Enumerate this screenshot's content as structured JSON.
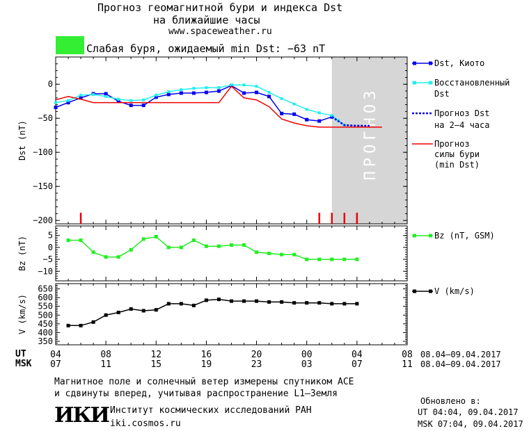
{
  "header": {
    "title_line1": "Прогноз геомагнитной бури и индекса Dst",
    "title_line2": "на ближайшие часы",
    "site": "www.spaceweather.ru",
    "status_color": "#33ee33",
    "status_text": "Слабая буря, ожидаемый min Dst: −63 nT"
  },
  "footer": {
    "line1": "Магнитное поле и солнечный ветер измерены спутником ACE",
    "line2": "и сдвинуты вперед, учитывая распространение L1–Земля",
    "logo": "ИКИ",
    "institute": "Институт космических исследований РАН",
    "institute_site": "iki.cosmos.ru",
    "updated_label": "Обновлено в:",
    "updated_ut": "UT  04:04, 09.04.2017",
    "updated_msk": "MSK 07:04, 09.04.2017"
  },
  "chart_data": [
    {
      "type": "line",
      "ylabel": "Dst (nT)",
      "ylim": [
        -205,
        40
      ],
      "yticks": [
        0,
        -50,
        -100,
        -150,
        -200
      ],
      "xlim": [
        0,
        28
      ],
      "forecast_region": {
        "x0": 22,
        "x1": 28,
        "label": "ПРОГНОЗ",
        "color": "#d6d6d6"
      },
      "series": [
        {
          "name": "Dst, Киото",
          "color": "#0000ee",
          "x": [
            0,
            1,
            2,
            3,
            4,
            5,
            6,
            7,
            8,
            9,
            10,
            11,
            12,
            13,
            14,
            15,
            16,
            17,
            18,
            19,
            20,
            21,
            22
          ],
          "values": [
            -34,
            -27,
            -20,
            -14,
            -14,
            -25,
            -31,
            -31,
            -19,
            -15,
            -13,
            -13,
            -12,
            -10,
            -2,
            -13,
            -12,
            -18,
            -43,
            -44,
            -52,
            -54,
            -48
          ]
        },
        {
          "name": "Восстановленный Dst",
          "color": "#22eeee",
          "x": [
            0,
            1,
            2,
            3,
            4,
            5,
            6,
            7,
            8,
            9,
            10,
            11,
            12,
            13,
            14,
            15,
            16,
            17,
            18,
            19,
            20,
            21,
            22,
            22.5,
            23
          ],
          "values": [
            -27,
            -24,
            -16,
            -15,
            -18,
            -22,
            -24,
            -23,
            -16,
            -11,
            -8,
            -6,
            -5,
            -5,
            -1,
            -1,
            -3,
            -12,
            -21,
            -29,
            -37,
            -42,
            -46,
            -53,
            -60
          ]
        },
        {
          "name": "Прогноз Dst на 2–4 часа",
          "color": "#0000ee",
          "dashed": true,
          "x": [
            22,
            23,
            24,
            25
          ],
          "values": [
            -48,
            -60,
            -61,
            -61
          ]
        },
        {
          "name": "Прогноз силы бури (min Dst)",
          "color": "#ee0000",
          "x": [
            0,
            1,
            2,
            3,
            4,
            5,
            6,
            7,
            8,
            9,
            10,
            11,
            12,
            13,
            14,
            15,
            16,
            17,
            18,
            19,
            20,
            21,
            22,
            23,
            24,
            25,
            26
          ],
          "values": [
            -23,
            -18,
            -22,
            -27,
            -27,
            -27,
            -27,
            -27,
            -27,
            -27,
            -27,
            -27,
            -27,
            -27,
            -3,
            -20,
            -23,
            -33,
            -51,
            -57,
            -61,
            -63,
            -63,
            -63,
            -63,
            -63,
            -63
          ]
        }
      ],
      "markers": {
        "color": "#ee0000",
        "x": [
          2,
          21,
          22,
          23,
          24
        ]
      }
    },
    {
      "type": "line",
      "ylabel": "Bz (nT)",
      "ylim": [
        -14,
        9
      ],
      "yticks": [
        5,
        0,
        -5,
        -10
      ],
      "xlim": [
        0,
        28
      ],
      "series": [
        {
          "name": "Bz (nT, GSM)",
          "color": "#22ee22",
          "x": [
            1,
            2,
            3,
            4,
            5,
            6,
            7,
            8,
            9,
            10,
            11,
            12,
            13,
            14,
            15,
            16,
            17,
            18,
            19,
            20,
            21,
            22,
            23,
            24
          ],
          "values": [
            3,
            3,
            -2,
            -4,
            -4,
            -1,
            3.5,
            4.5,
            0,
            0,
            3,
            0.5,
            0.5,
            1,
            1,
            -2,
            -2.5,
            -3,
            -3,
            -5,
            -5,
            -5,
            -5,
            -5
          ]
        }
      ]
    },
    {
      "type": "line",
      "ylabel": "V (km/s)",
      "ylim": [
        330,
        680
      ],
      "yticks": [
        650,
        600,
        550,
        500,
        450,
        400,
        350
      ],
      "xlim": [
        0,
        28
      ],
      "series": [
        {
          "name": "V (km/s)",
          "color": "#000000",
          "x": [
            1,
            2,
            3,
            4,
            5,
            6,
            7,
            8,
            9,
            10,
            11,
            12,
            13,
            14,
            15,
            16,
            17,
            18,
            19,
            20,
            21,
            22,
            23,
            24
          ],
          "values": [
            440,
            440,
            460,
            500,
            515,
            535,
            525,
            530,
            565,
            565,
            555,
            585,
            590,
            580,
            580,
            580,
            575,
            575,
            570,
            570,
            570,
            565,
            565,
            565
          ]
        }
      ]
    }
  ],
  "legend": {
    "dst": "Dst, Киото",
    "recon_line1": "Восстановленный",
    "recon_line2": "Dst",
    "forecast_line1": "Прогноз Dst",
    "forecast_line2": "на 2–4 часа",
    "storm_line1": "Прогноз",
    "storm_line2": "силы бури",
    "storm_line3": "(min Dst)",
    "bz": "Bz (nT, GSM)",
    "v": "V (km/s)"
  },
  "xaxis": {
    "ut_label": "UT",
    "msk_label": "MSK",
    "ut_ticks": [
      "04",
      "08",
      "12",
      "16",
      "20",
      "00",
      "04",
      "08"
    ],
    "msk_ticks": [
      "07",
      "11",
      "15",
      "19",
      "23",
      "03",
      "07",
      "11"
    ],
    "ut_range": "08.04–09.04.2017",
    "msk_range": "08.04–09.04.2017"
  }
}
